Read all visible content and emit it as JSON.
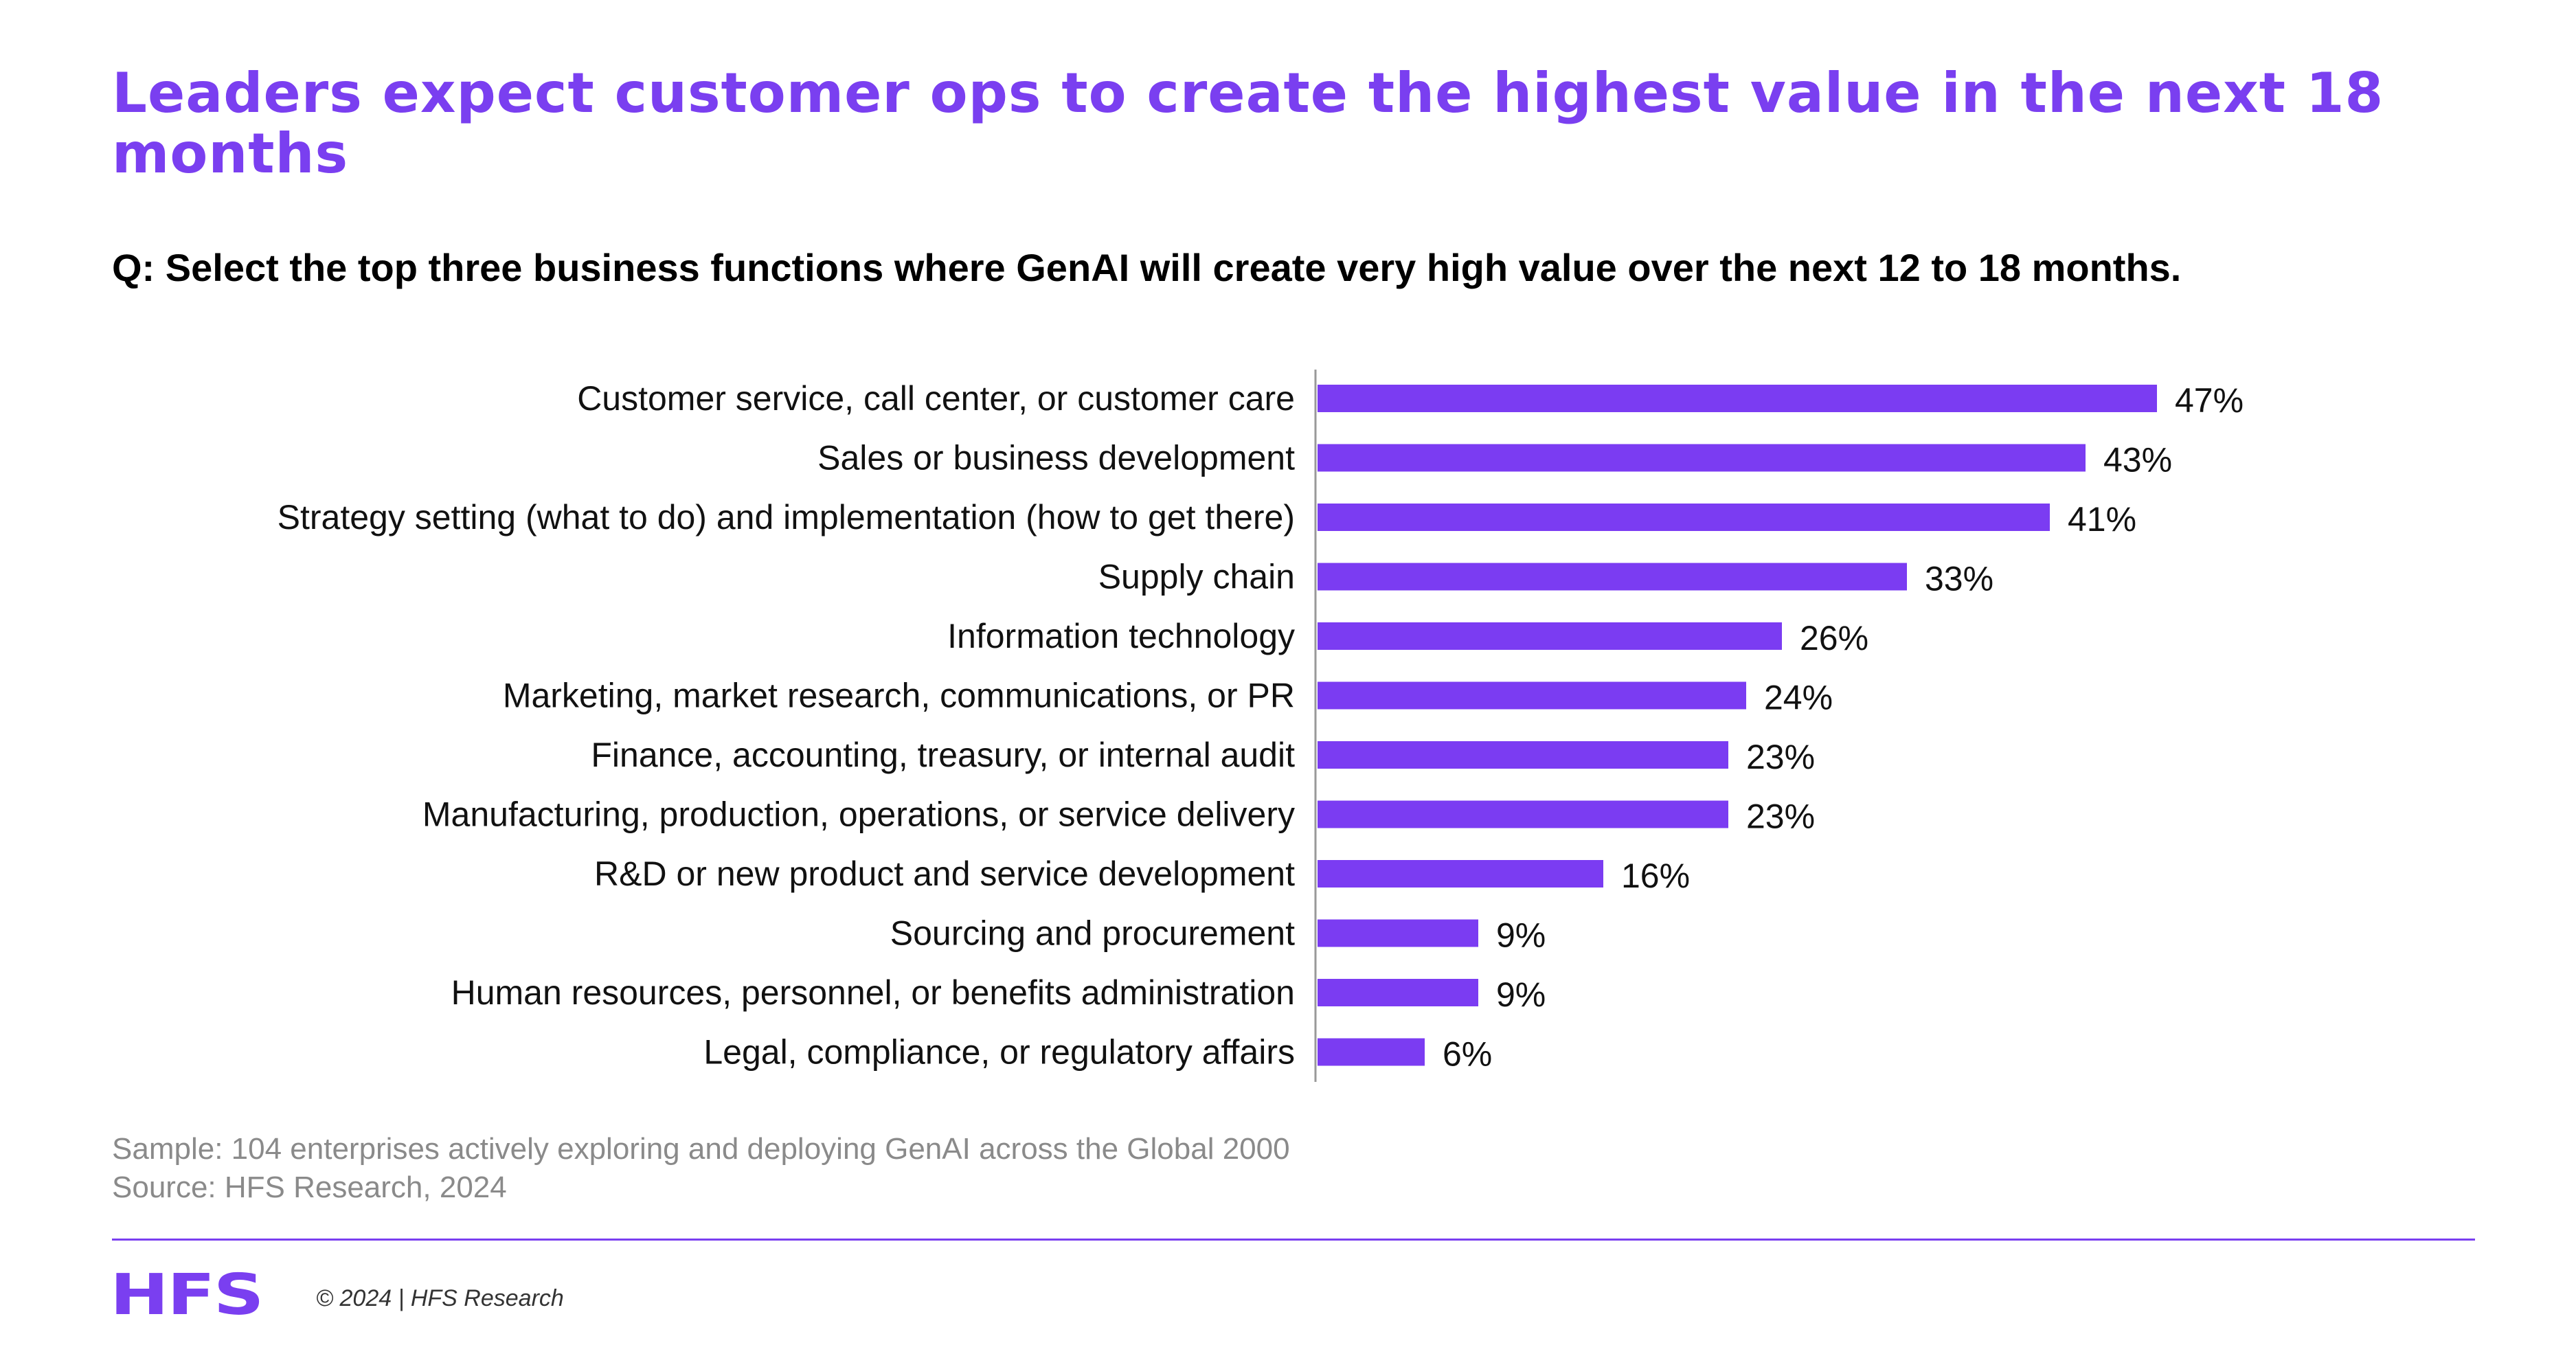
{
  "title": "Leaders expect customer ops to create the highest value in the next 18 months",
  "question": "Q: Select the top three business functions where GenAI will create very high value over the next 12 to 18 months.",
  "colors": {
    "accent": "#7a3ff0",
    "bar": "#7b3cf2",
    "axis": "#999999"
  },
  "chart_data": {
    "type": "bar",
    "orientation": "horizontal",
    "categories": [
      "Customer service, call center, or customer care",
      "Sales or business development",
      "Strategy setting (what to do) and implementation (how to get there)",
      "Supply chain",
      "Information technology",
      "Marketing, market research, communications, or PR",
      "Finance, accounting, treasury, or internal audit",
      "Manufacturing, production, operations, or service delivery",
      "R&D or new product and service development",
      "Sourcing and procurement",
      "Human resources, personnel, or benefits administration",
      "Legal, compliance, or regulatory affairs"
    ],
    "values": [
      47,
      43,
      41,
      33,
      26,
      24,
      23,
      23,
      16,
      9,
      9,
      6
    ],
    "value_labels": [
      "47%",
      "43%",
      "41%",
      "33%",
      "26%",
      "24%",
      "23%",
      "23%",
      "16%",
      "9%",
      "9%",
      "6%"
    ],
    "xlim": [
      0,
      100
    ],
    "grid": false,
    "legend": "none"
  },
  "footer": {
    "sample": "Sample: 104 enterprises actively exploring and deploying GenAI across the Global 2000",
    "source": "Source: HFS Research, 2024",
    "logo": "HFS",
    "copyright": "© 2024 | HFS Research"
  }
}
